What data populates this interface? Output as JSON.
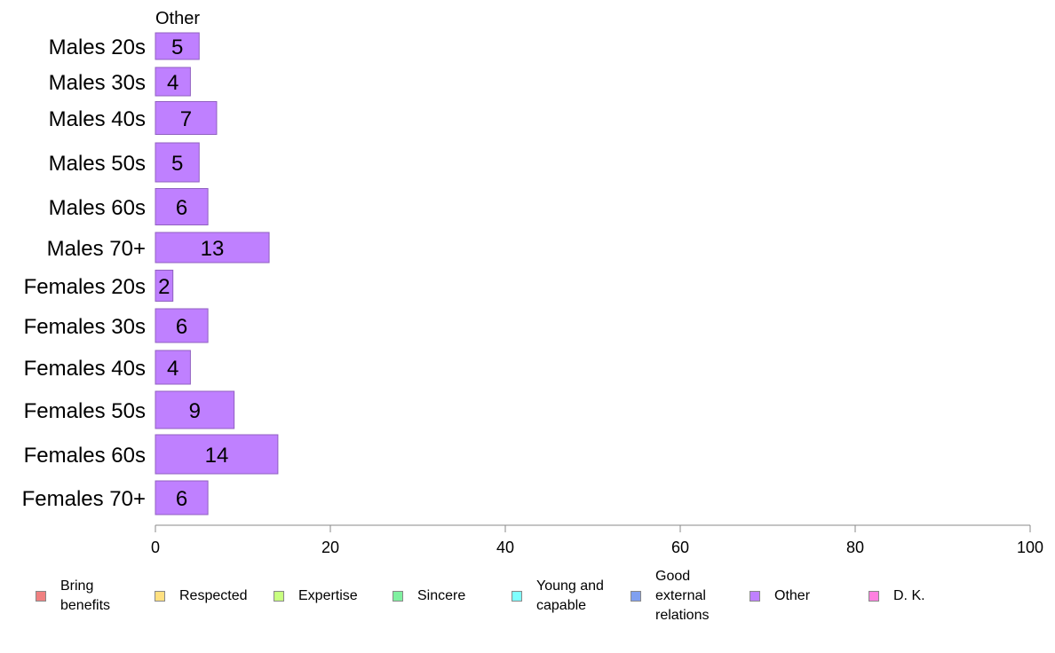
{
  "chart_data": {
    "type": "bar",
    "orientation": "horizontal",
    "title": "Other",
    "categories": [
      "Males 20s",
      "Males 30s",
      "Males 40s",
      "Males 50s",
      "Males 60s",
      "Males 70+",
      "Females 20s",
      "Females 30s",
      "Females 40s",
      "Females 50s",
      "Females 60s",
      "Females 70+"
    ],
    "series": [
      {
        "name": "Other",
        "values": [
          5,
          4,
          7,
          5,
          6,
          13,
          2,
          6,
          4,
          9,
          14,
          6
        ]
      }
    ],
    "xlim": [
      0,
      100
    ],
    "xticks": [
      "0",
      "20",
      "40",
      "60",
      "80",
      "100"
    ],
    "grid": false,
    "bar_color": "#BF80FF",
    "legend": {
      "position": "bottom",
      "items": [
        {
          "label": "Bring\nbenefits",
          "color": "#F08080"
        },
        {
          "label": "Respected",
          "color": "#FFE080"
        },
        {
          "label": "Expertise",
          "color": "#C8FF80"
        },
        {
          "label": "Sincere",
          "color": "#80F0A0"
        },
        {
          "label": "Young and\ncapable",
          "color": "#80FFFF"
        },
        {
          "label": "Good\nexternal\nrelations",
          "color": "#80A0F0"
        },
        {
          "label": "Other",
          "color": "#BF80FF"
        },
        {
          "label": "D. K.",
          "color": "#FF80E0"
        }
      ]
    }
  }
}
